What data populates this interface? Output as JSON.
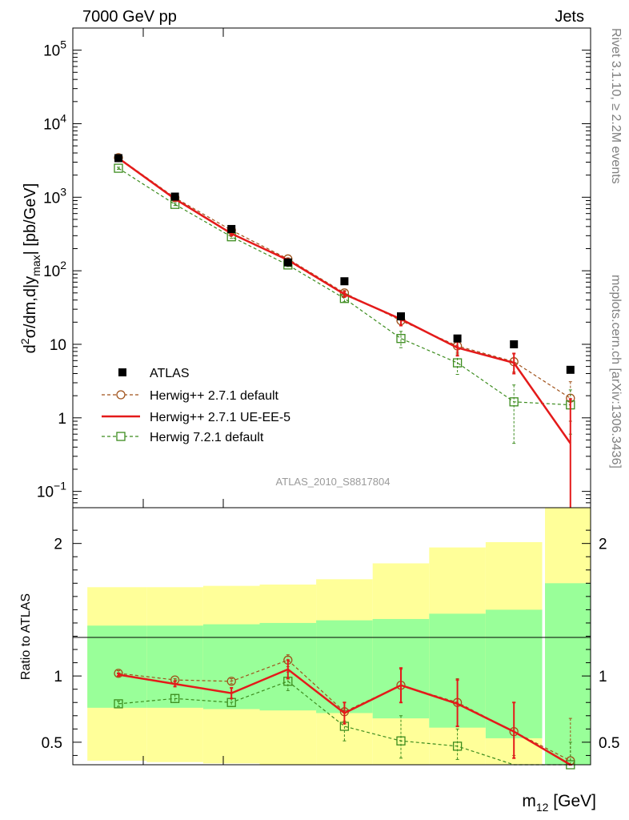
{
  "header": {
    "left": "7000 GeV pp",
    "right": "Jets"
  },
  "side_labels": {
    "rivet": "Rivet 3.1.10, ≥ 2.2M events",
    "mcplots": "mcplots.cern.ch [arXiv:1306.3436]"
  },
  "chart_data": [
    {
      "type": "scatter",
      "panel": "main",
      "ylabel": "d²σ/dm,d|y_max| [pb/GeV]",
      "yscale": "log",
      "ylim": [
        0.06,
        200000
      ],
      "ytick_labels": [
        "10⁻¹",
        "1",
        "10",
        "10²",
        "10³",
        "10⁴",
        "10⁵"
      ],
      "ytick_values": [
        0.1,
        1,
        10,
        100,
        1000,
        10000,
        100000
      ],
      "analysis_label": "ATLAS_2010_S8817804",
      "legend_placement": "bottom-left",
      "x": [
        1,
        2,
        3,
        4,
        5,
        6,
        7,
        8,
        9
      ],
      "series": [
        {
          "name": "ATLAS",
          "style": "data",
          "color": "#000000",
          "marker": "filled-square",
          "values": [
            3400,
            1020,
            370,
            130,
            72,
            24,
            12,
            10,
            4.5
          ]
        },
        {
          "name": "Herwig++ 2.7.1 default",
          "style": "dashed",
          "color": "#a0521a",
          "marker": "open-circle",
          "values": [
            3450,
            985,
            355,
            145,
            50,
            21,
            9.5,
            5.8,
            1.85
          ],
          "err_low": [
            3350,
            950,
            340,
            140,
            46,
            18,
            7.8,
            4.2,
            0.9
          ],
          "err_high": [
            3550,
            1020,
            370,
            150,
            54,
            24,
            11,
            7.4,
            3.1
          ]
        },
        {
          "name": "Herwig++ 2.7.1 UE-EE-5",
          "style": "solid",
          "color": "#e41a1a",
          "marker": "none",
          "values": [
            3400,
            950,
            320,
            140,
            48,
            22,
            9.0,
            5.6,
            0.45
          ],
          "err_low": [
            3300,
            900,
            300,
            135,
            44,
            18,
            7.0,
            4.0,
            0.001
          ],
          "err_high": [
            3500,
            1000,
            340,
            145,
            52,
            26,
            11,
            7.5,
            1.8
          ]
        },
        {
          "name": "Herwig 7.2.1 default",
          "style": "dashed",
          "color": "#3c8c1e",
          "marker": "open-square",
          "values": [
            2480,
            800,
            290,
            120,
            42,
            12,
            5.6,
            1.65,
            1.5
          ],
          "err_low": [
            2400,
            770,
            275,
            114,
            38,
            9.0,
            3.9,
            0.45,
            0.6
          ],
          "err_high": [
            2560,
            830,
            305,
            126,
            46,
            15,
            7.4,
            2.8,
            2.4
          ]
        }
      ]
    },
    {
      "type": "line",
      "panel": "ratio",
      "ylabel": "Ratio to ATLAS",
      "ylim": [
        0.33,
        2.27
      ],
      "ytick_labels": [
        "0.5",
        "1",
        "2"
      ],
      "ytick_values": [
        0.5,
        1,
        2
      ],
      "xlabel": "m₁₂ [GeV]",
      "bands": [
        {
          "x_from": 0.45,
          "x_to": 1.5,
          "green_low": 0.76,
          "green_high": 1.38,
          "yellow_low": 0.36,
          "yellow_high": 1.67
        },
        {
          "x_from": 1.5,
          "x_to": 2.5,
          "green_low": 0.76,
          "green_high": 1.38,
          "yellow_low": 0.35,
          "yellow_high": 1.67
        },
        {
          "x_from": 2.5,
          "x_to": 3.5,
          "green_low": 0.75,
          "green_high": 1.39,
          "yellow_low": 0.34,
          "yellow_high": 1.68
        },
        {
          "x_from": 3.5,
          "x_to": 4.5,
          "green_low": 0.74,
          "green_high": 1.4,
          "yellow_low": 0.33,
          "yellow_high": 1.69
        },
        {
          "x_from": 4.5,
          "x_to": 5.5,
          "green_low": 0.72,
          "green_high": 1.42,
          "yellow_low": 0.33,
          "yellow_high": 1.73
        },
        {
          "x_from": 5.5,
          "x_to": 6.5,
          "green_low": 0.68,
          "green_high": 1.43,
          "yellow_low": 0.33,
          "yellow_high": 1.85
        },
        {
          "x_from": 6.5,
          "x_to": 7.5,
          "green_low": 0.61,
          "green_high": 1.47,
          "yellow_low": 0.33,
          "yellow_high": 1.97
        },
        {
          "x_from": 7.5,
          "x_to": 8.5,
          "green_low": 0.53,
          "green_high": 1.5,
          "yellow_low": 0.33,
          "yellow_high": 2.01
        },
        {
          "x_from": 8.55,
          "x_to": 9.35,
          "green_low": 0.33,
          "green_high": 1.7,
          "yellow_low": 0.33,
          "yellow_high": 2.27
        }
      ],
      "x": [
        1,
        2,
        3,
        4,
        5,
        6,
        7,
        8,
        9
      ],
      "series": [
        {
          "name": "Herwig++ 2.7.1 default",
          "style": "dashed",
          "color": "#a0521a",
          "marker": "open-circle",
          "values": [
            1.02,
            0.97,
            0.96,
            1.12,
            0.73,
            0.93,
            0.8,
            0.58,
            0.36
          ],
          "err_low": [
            1.0,
            0.96,
            0.94,
            1.07,
            0.66,
            0.8,
            0.62,
            0.4,
            0.33
          ],
          "err_high": [
            1.04,
            0.98,
            0.98,
            1.16,
            0.8,
            1.05,
            0.98,
            0.8,
            0.68
          ]
        },
        {
          "name": "Herwig++ 2.7.1 UE-EE-5",
          "style": "solid",
          "color": "#e41a1a",
          "marker": "none",
          "values": [
            1.01,
            0.94,
            0.87,
            1.05,
            0.72,
            0.93,
            0.79,
            0.58,
            0.01
          ],
          "err_low": [
            1.0,
            0.92,
            0.83,
            0.98,
            0.64,
            0.8,
            0.62,
            0.38,
            0.01
          ],
          "err_high": [
            1.02,
            0.96,
            0.91,
            1.12,
            0.8,
            1.06,
            0.97,
            0.8,
            0.33
          ]
        },
        {
          "name": "Herwig 7.2.1 default",
          "style": "dashed",
          "color": "#3c8c1e",
          "marker": "open-square",
          "values": [
            0.79,
            0.83,
            0.8,
            0.96,
            0.62,
            0.51,
            0.47,
            0.15,
            0.33
          ],
          "err_low": [
            0.77,
            0.8,
            0.77,
            0.89,
            0.51,
            0.38,
            0.37,
            0.1,
            0.3
          ],
          "err_high": [
            0.81,
            0.86,
            0.83,
            1.03,
            0.74,
            0.7,
            0.6,
            0.3,
            0.5
          ]
        }
      ]
    }
  ]
}
